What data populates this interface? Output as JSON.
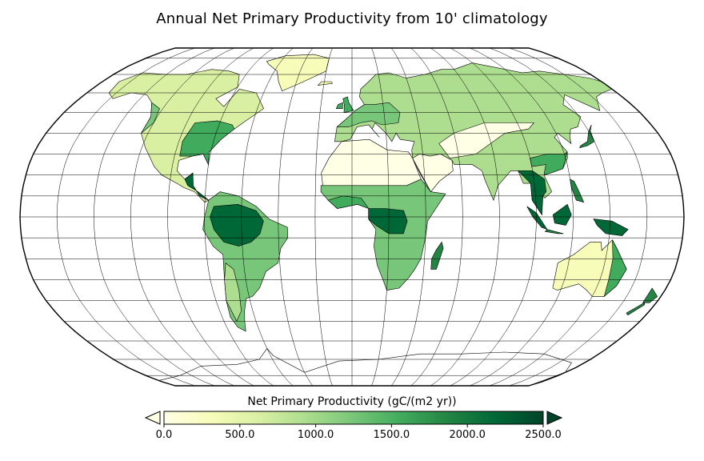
{
  "title": "Annual Net Primary Productivity from 10' climatology",
  "projection": "Robinson",
  "colorbar": {
    "label": "Net Primary Productivity (gC/(m2 yr))",
    "min": 0,
    "max": 2500,
    "ticks": [
      "0.0",
      "500.0",
      "1000.0",
      "1500.0",
      "2000.0",
      "2500.0"
    ],
    "extend": "both",
    "colors": [
      "#ffffe5",
      "#f7fcb9",
      "#d9f0a3",
      "#addd8e",
      "#78c679",
      "#41ab5d",
      "#238443",
      "#006837",
      "#004529"
    ]
  },
  "graticule": {
    "lat_step_deg": 10,
    "lon_step_deg": 20
  }
}
